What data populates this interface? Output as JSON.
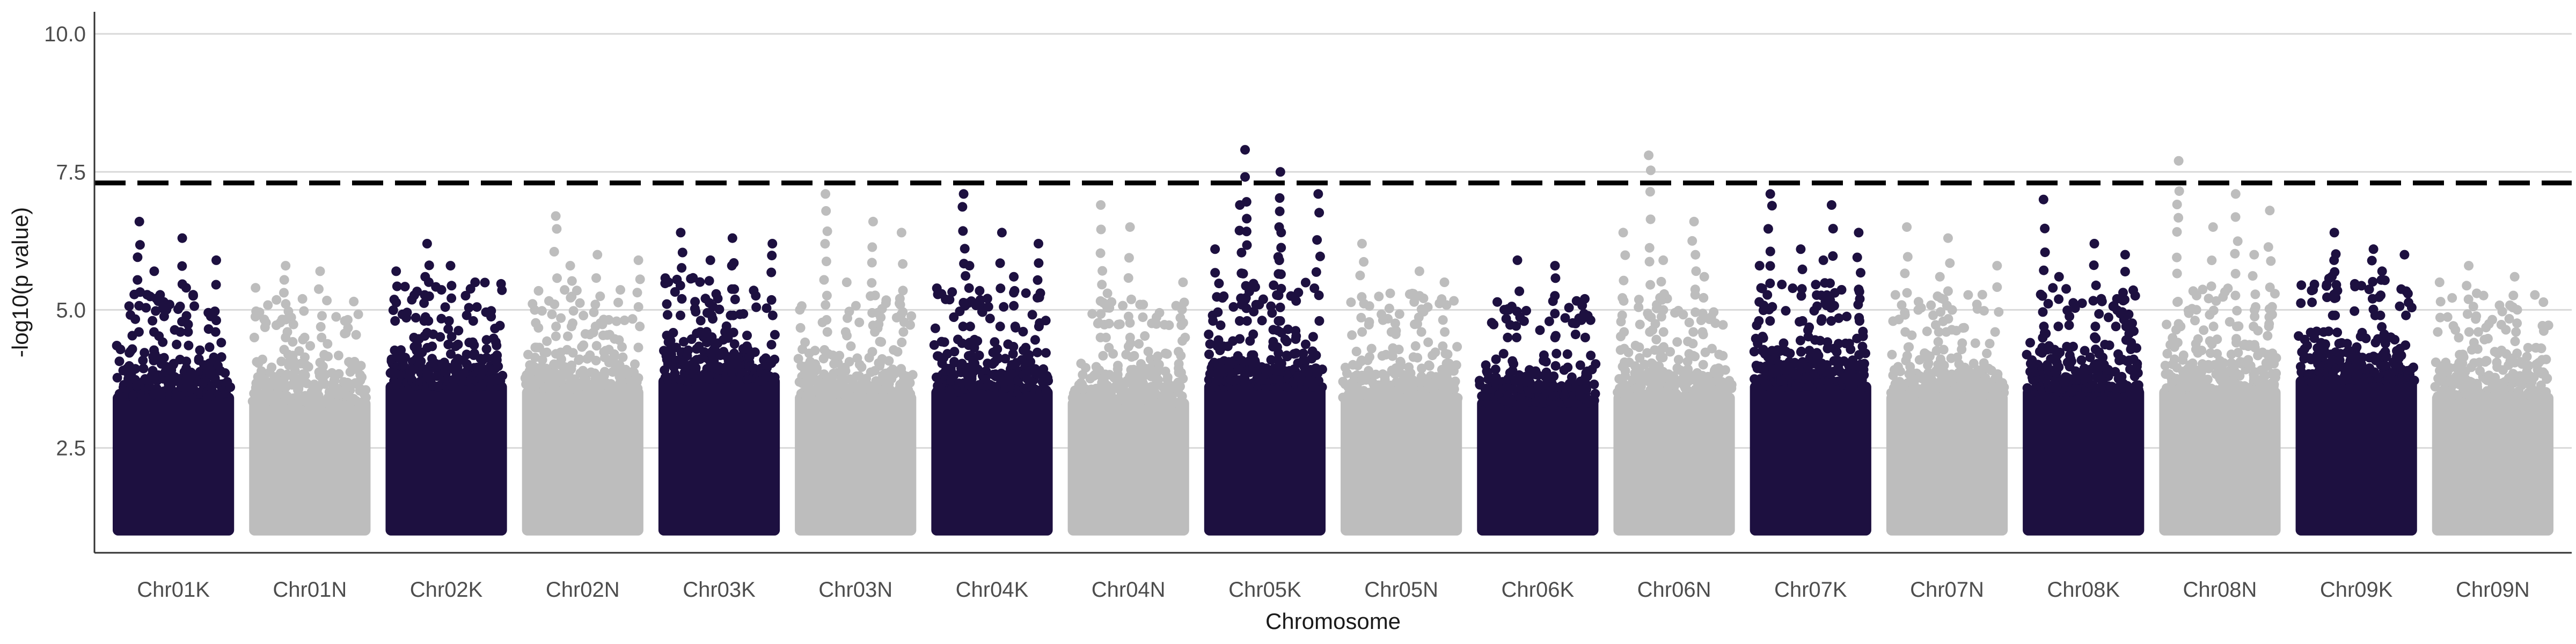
{
  "chart_data": {
    "type": "scatter",
    "subtype": "manhattan",
    "title": "",
    "xlabel": "Chromosome",
    "ylabel": "-log10(p value)",
    "ylim": [
      0.6,
      10.4
    ],
    "yticks": [
      2.5,
      5.0,
      7.5,
      10.0
    ],
    "ytick_labels": [
      "2.5",
      "5.0",
      "7.5",
      "10.0"
    ],
    "grid": "horizontal major",
    "legend": "none",
    "threshold": {
      "value": 7.3,
      "style": "dashed",
      "color": "#000000"
    },
    "colors": {
      "dark": "#1d1040",
      "light": "#bdbdbd"
    },
    "floor": 1.0,
    "chromosomes": [
      {
        "name": "Chr01K",
        "color": "dark",
        "base_max": 4.6,
        "notable_peaks": [
          6.6,
          6.3,
          5.9,
          5.7,
          5.4
        ]
      },
      {
        "name": "Chr01N",
        "color": "light",
        "base_max": 4.5,
        "notable_peaks": [
          5.8,
          5.7,
          5.4,
          5.2
        ]
      },
      {
        "name": "Chr02K",
        "color": "dark",
        "base_max": 4.8,
        "notable_peaks": [
          6.2,
          5.8,
          5.7,
          5.6,
          5.5
        ]
      },
      {
        "name": "Chr02N",
        "color": "light",
        "base_max": 4.7,
        "notable_peaks": [
          6.7,
          6.0,
          5.9,
          5.8
        ]
      },
      {
        "name": "Chr03K",
        "color": "dark",
        "base_max": 4.9,
        "notable_peaks": [
          6.4,
          6.3,
          6.2,
          5.9,
          5.8
        ]
      },
      {
        "name": "Chr03N",
        "color": "light",
        "base_max": 4.6,
        "notable_peaks": [
          7.1,
          6.6,
          6.4,
          5.5
        ]
      },
      {
        "name": "Chr04K",
        "color": "dark",
        "base_max": 4.7,
        "notable_peaks": [
          7.1,
          6.4,
          6.2,
          5.8,
          5.6
        ]
      },
      {
        "name": "Chr04N",
        "color": "light",
        "base_max": 4.5,
        "notable_peaks": [
          6.9,
          6.5,
          5.5,
          5.3
        ]
      },
      {
        "name": "Chr05K",
        "color": "dark",
        "base_max": 4.8,
        "notable_peaks": [
          7.9,
          7.5,
          7.1,
          6.9,
          6.5,
          6.1
        ]
      },
      {
        "name": "Chr05N",
        "color": "light",
        "base_max": 4.6,
        "notable_peaks": [
          6.2,
          5.7,
          5.5,
          5.3
        ]
      },
      {
        "name": "Chr06K",
        "color": "dark",
        "base_max": 4.5,
        "notable_peaks": [
          5.9,
          5.8,
          5.2,
          5.0
        ]
      },
      {
        "name": "Chr06N",
        "color": "light",
        "base_max": 4.6,
        "notable_peaks": [
          7.8,
          6.6,
          6.4,
          5.9,
          5.6
        ]
      },
      {
        "name": "Chr07K",
        "color": "dark",
        "base_max": 4.8,
        "notable_peaks": [
          7.1,
          6.9,
          6.4,
          6.1,
          5.9,
          5.8
        ]
      },
      {
        "name": "Chr07N",
        "color": "light",
        "base_max": 4.6,
        "notable_peaks": [
          6.5,
          6.3,
          5.8,
          5.6
        ]
      },
      {
        "name": "Chr08K",
        "color": "dark",
        "base_max": 4.7,
        "notable_peaks": [
          7.0,
          6.2,
          6.0,
          5.6,
          5.2
        ]
      },
      {
        "name": "Chr08N",
        "color": "light",
        "base_max": 4.7,
        "notable_peaks": [
          7.7,
          7.1,
          6.8,
          6.5,
          6.0
        ]
      },
      {
        "name": "Chr09K",
        "color": "dark",
        "base_max": 4.9,
        "notable_peaks": [
          6.4,
          6.1,
          6.0,
          5.9,
          5.7
        ]
      },
      {
        "name": "Chr09N",
        "color": "light",
        "base_max": 4.6,
        "notable_peaks": [
          5.8,
          5.6,
          5.5,
          5.3
        ]
      }
    ]
  }
}
